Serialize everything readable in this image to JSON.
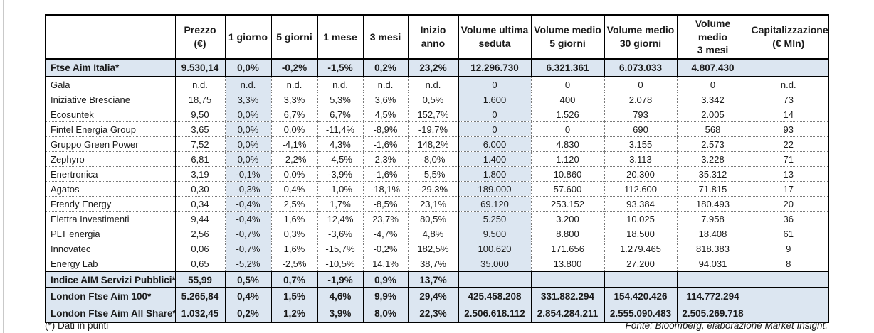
{
  "colors": {
    "highlight": "#dce6f1",
    "border": "#000000",
    "background": "#ffffff"
  },
  "main": {
    "columns": [
      "",
      "Prezzo\n(€)",
      "1 giorno",
      "5 giorni",
      "1 mese",
      "3 mesi",
      "Inizio anno",
      "Volume ultima\nseduta",
      "Volume medio\n5 giorni",
      "Volume medio\n30 giorni",
      "Volume medio\n3 mesi",
      "Capitalizzazione\n(€ Mln)"
    ],
    "rows": [
      {
        "type": "index",
        "cells": [
          "Ftse Aim Italia*",
          "9.530,14",
          "0,0%",
          "-0,2%",
          "-1,5%",
          "0,2%",
          "23,2%",
          "12.296.730",
          "6.321.361",
          "6.073.033",
          "4.807.430",
          ""
        ]
      },
      {
        "type": "data",
        "cells": [
          "Gala",
          "n.d.",
          "n.d.",
          "n.d.",
          "n.d.",
          "n.d.",
          "n.d.",
          "0",
          "0",
          "0",
          "0",
          "n.d."
        ]
      },
      {
        "type": "data",
        "cells": [
          "Iniziative Bresciane",
          "18,75",
          "3,3%",
          "3,3%",
          "5,3%",
          "3,6%",
          "0,5%",
          "1.600",
          "400",
          "2.078",
          "3.342",
          "73"
        ]
      },
      {
        "type": "data",
        "cells": [
          "Ecosuntek",
          "9,50",
          "0,0%",
          "6,7%",
          "6,7%",
          "4,5%",
          "152,7%",
          "0",
          "1.526",
          "793",
          "2.005",
          "14"
        ]
      },
      {
        "type": "data",
        "cells": [
          "Fintel Energia Group",
          "3,65",
          "0,0%",
          "0,0%",
          "-11,4%",
          "-8,9%",
          "-19,7%",
          "0",
          "0",
          "690",
          "568",
          "93"
        ]
      },
      {
        "type": "data",
        "cells": [
          "Gruppo Green Power",
          "7,52",
          "0,0%",
          "-4,1%",
          "4,3%",
          "-1,6%",
          "148,2%",
          "6.000",
          "4.830",
          "3.155",
          "2.573",
          "22"
        ]
      },
      {
        "type": "data",
        "cells": [
          "Zephyro",
          "6,81",
          "0,0%",
          "-2,2%",
          "-4,5%",
          "2,3%",
          "-8,0%",
          "1.400",
          "1.120",
          "3.113",
          "3.228",
          "71"
        ]
      },
      {
        "type": "data",
        "cells": [
          "Enertronica",
          "3,19",
          "-0,1%",
          "0,0%",
          "-3,9%",
          "-1,6%",
          "-5,5%",
          "1.800",
          "10.860",
          "20.300",
          "35.312",
          "13"
        ]
      },
      {
        "type": "data",
        "cells": [
          "Agatos",
          "0,30",
          "-0,3%",
          "0,4%",
          "-1,0%",
          "-18,1%",
          "-29,3%",
          "189.000",
          "57.600",
          "112.600",
          "71.815",
          "17"
        ]
      },
      {
        "type": "data",
        "cells": [
          "Frendy Energy",
          "0,34",
          "-0,4%",
          "2,5%",
          "1,7%",
          "-8,5%",
          "23,1%",
          "69.120",
          "253.152",
          "93.384",
          "180.493",
          "20"
        ]
      },
      {
        "type": "data",
        "cells": [
          "Elettra Investimenti",
          "9,44",
          "-0,4%",
          "1,6%",
          "12,4%",
          "23,7%",
          "80,5%",
          "5.250",
          "3.200",
          "10.025",
          "7.958",
          "36"
        ]
      },
      {
        "type": "data",
        "cells": [
          "PLT energia",
          "2,56",
          "-0,7%",
          "0,3%",
          "-3,6%",
          "-4,7%",
          "4,8%",
          "9.500",
          "8.800",
          "18.500",
          "18.408",
          "61"
        ]
      },
      {
        "type": "data",
        "cells": [
          "Innovatec",
          "0,06",
          "-0,7%",
          "1,6%",
          "-15,7%",
          "-0,2%",
          "182,5%",
          "100.620",
          "171.656",
          "1.279.465",
          "818.383",
          "9"
        ]
      },
      {
        "type": "data",
        "cells": [
          "Energy Lab",
          "0,65",
          "-5,2%",
          "-2,5%",
          "-10,5%",
          "14,1%",
          "38,7%",
          "35.000",
          "13.800",
          "27.200",
          "94.031",
          "8"
        ]
      },
      {
        "type": "total",
        "cells": [
          "Indice AIM Servizi Pubblici*",
          "55,99",
          "0,5%",
          "0,7%",
          "-1,9%",
          "0,9%",
          "13,7%",
          "",
          "",
          "",
          "",
          ""
        ]
      }
    ]
  },
  "london": {
    "rows": [
      {
        "type": "london",
        "cells": [
          "London Ftse Aim 100*",
          "5.265,84",
          "0,4%",
          "1,5%",
          "4,6%",
          "9,9%",
          "29,4%",
          "425.458.208",
          "331.882.294",
          "154.420.426",
          "114.772.294",
          ""
        ]
      },
      {
        "type": "london",
        "cells": [
          "London Ftse Aim All Share*",
          "1.032,45",
          "0,2%",
          "1,2%",
          "3,9%",
          "8,0%",
          "22,3%",
          "2.506.618.112",
          "2.854.284.211",
          "2.555.090.483",
          "2.505.269.718",
          ""
        ]
      }
    ]
  },
  "footer": {
    "left": "(*) Dati in punti",
    "source": "Fonte: Bloomberg, elaborazione Market Insight."
  }
}
